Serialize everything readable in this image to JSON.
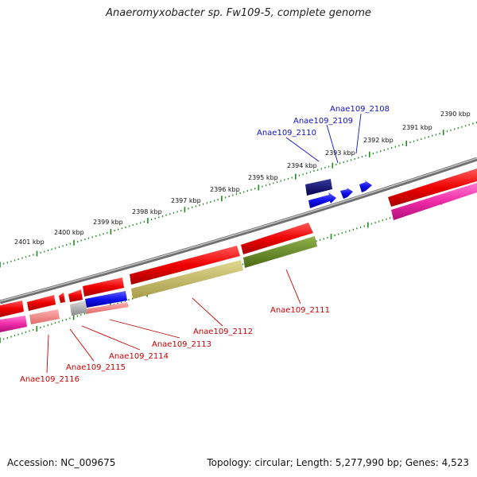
{
  "title": "Anaeromyxobacter sp. Fw109-5, complete genome",
  "footer": {
    "accession": "Accession: NC_009675",
    "topology": "Topology: circular; Length: 5,277,990 bp; Genes: 4,523"
  },
  "scale_labels": [
    "2390 kbp",
    "2391 kbp",
    "2392 kbp",
    "2393 kbp",
    "2394 kbp",
    "2395 kbp",
    "2396 kbp",
    "2397 kbp",
    "2398 kbp",
    "2399 kbp",
    "2400 kbp",
    "2401 kbp"
  ],
  "forward_labels": [
    "Anae109_2108",
    "Anae109_2109",
    "Anae109_2110"
  ],
  "reverse_labels": [
    "Anae109_2111",
    "Anae109_2112",
    "Anae109_2113",
    "Anae109_2114",
    "Anae109_2115",
    "Anae109_2116"
  ],
  "colors": {
    "forward_label": "#1010c8",
    "reverse_label": "#c80000",
    "tick": "#1e8c1e",
    "backbone": "#8a8a8a"
  }
}
